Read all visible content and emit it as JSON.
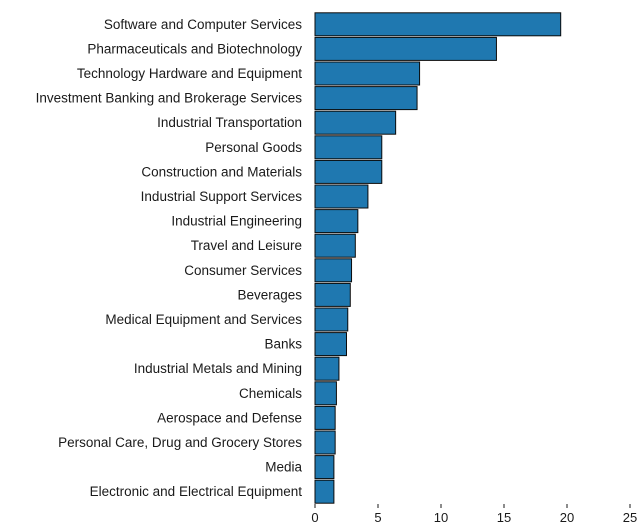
{
  "chart_data": {
    "type": "bar",
    "orientation": "horizontal",
    "title": "",
    "xlabel": "",
    "ylabel": "",
    "categories": [
      "Software and Computer Services",
      "Pharmaceuticals and Biotechnology",
      "Technology Hardware and Equipment",
      "Investment Banking and Brokerage Services",
      "Industrial Transportation",
      "Personal Goods",
      "Construction and Materials",
      "Industrial Support Services",
      "Industrial Engineering",
      "Travel and Leisure",
      "Consumer Services",
      "Beverages",
      "Medical Equipment and Services",
      "Banks",
      "Industrial Metals and Mining",
      "Chemicals",
      "Aerospace and Defense",
      "Personal Care, Drug and Grocery Stores",
      "Media",
      "Electronic and Electrical Equipment"
    ],
    "values": [
      19.5,
      14.4,
      8.3,
      8.1,
      6.4,
      5.3,
      5.3,
      4.2,
      3.4,
      3.2,
      2.9,
      2.8,
      2.6,
      2.5,
      1.9,
      1.7,
      1.6,
      1.6,
      1.5,
      1.5
    ],
    "xlim": [
      0,
      25
    ],
    "xticks": [
      0,
      5,
      10,
      15,
      20,
      25
    ],
    "grid": false,
    "legend": "none",
    "bar_color": "#1f78b0"
  }
}
